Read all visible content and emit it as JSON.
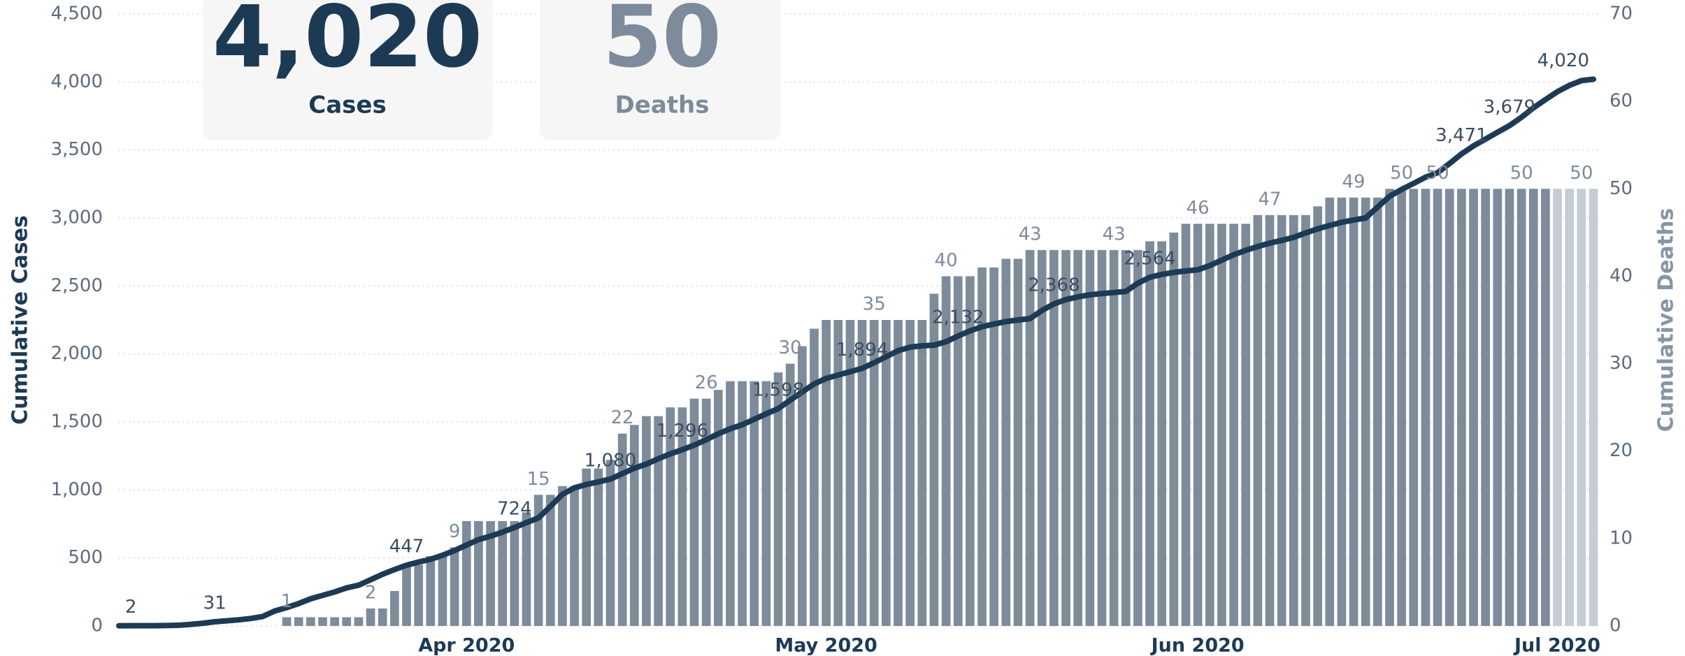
{
  "kpis": [
    {
      "value": "4,020",
      "label": "Cases"
    },
    {
      "value": "50",
      "label": "Deaths"
    }
  ],
  "chart_data": {
    "type": "bar-line",
    "categories": [
      null,
      null,
      null,
      null,
      null,
      null,
      null,
      null,
      null,
      null,
      null,
      null,
      null,
      null,
      null,
      null,
      null,
      null,
      null,
      null,
      null,
      null,
      null,
      null,
      null,
      null,
      null,
      null,
      null,
      "Apr 2020",
      null,
      null,
      null,
      null,
      null,
      null,
      null,
      null,
      null,
      null,
      null,
      null,
      null,
      null,
      null,
      null,
      null,
      null,
      null,
      null,
      null,
      null,
      null,
      null,
      null,
      null,
      null,
      null,
      null,
      "May 2020",
      null,
      null,
      null,
      null,
      null,
      null,
      null,
      null,
      null,
      null,
      null,
      null,
      null,
      null,
      null,
      null,
      null,
      null,
      null,
      null,
      null,
      null,
      null,
      null,
      null,
      null,
      null,
      null,
      null,
      null,
      "Jun 2020",
      null,
      null,
      null,
      null,
      null,
      null,
      null,
      null,
      null,
      null,
      null,
      null,
      null,
      null,
      null,
      null,
      null,
      null,
      null,
      null,
      null,
      null,
      null,
      null,
      null,
      null,
      null,
      null,
      null,
      "Jul 2020",
      null,
      null,
      null
    ],
    "series": [
      {
        "name": "Cumulative Cases",
        "kind": "line",
        "axis": "y",
        "color": "#1d3a55",
        "values": [
          1,
          2,
          2,
          2,
          3,
          5,
          12,
          20,
          31,
          38,
          45,
          55,
          70,
          110,
          135,
          165,
          200,
          225,
          250,
          280,
          300,
          340,
          380,
          415,
          447,
          470,
          490,
          520,
          555,
          595,
          635,
          660,
          690,
          724,
          760,
          794,
          880,
          968,
          1016,
          1040,
          1060,
          1080,
          1120,
          1160,
          1190,
          1230,
          1265,
          1296,
          1330,
          1370,
          1413,
          1450,
          1480,
          1520,
          1560,
          1598,
          1660,
          1720,
          1780,
          1820,
          1845,
          1870,
          1894,
          1935,
          1980,
          2024,
          2050,
          2060,
          2065,
          2090,
          2132,
          2170,
          2200,
          2220,
          2238,
          2250,
          2260,
          2320,
          2368,
          2400,
          2420,
          2435,
          2444,
          2452,
          2460,
          2520,
          2564,
          2585,
          2600,
          2610,
          2619,
          2650,
          2690,
          2730,
          2762,
          2790,
          2815,
          2835,
          2857,
          2890,
          2920,
          2945,
          2968,
          2985,
          3000,
          3080,
          3159,
          3210,
          3254,
          3300,
          3333,
          3400,
          3471,
          3530,
          3580,
          3630,
          3679,
          3740,
          3810,
          3870,
          3929,
          3975,
          4010,
          4020
        ],
        "value_labels": [
          null,
          "2",
          null,
          null,
          null,
          null,
          null,
          null,
          "31",
          null,
          null,
          null,
          null,
          null,
          null,
          null,
          null,
          null,
          null,
          null,
          null,
          null,
          null,
          null,
          "447",
          null,
          null,
          null,
          null,
          null,
          null,
          null,
          null,
          "724",
          null,
          null,
          null,
          null,
          null,
          null,
          null,
          "1,080",
          null,
          null,
          null,
          null,
          null,
          "1,296",
          null,
          null,
          null,
          null,
          null,
          null,
          null,
          "1,598",
          null,
          null,
          null,
          null,
          null,
          null,
          "1,894",
          null,
          null,
          null,
          null,
          null,
          null,
          null,
          "2,132",
          null,
          null,
          null,
          null,
          null,
          null,
          null,
          "2,368",
          null,
          null,
          null,
          null,
          null,
          null,
          null,
          "2,564",
          null,
          null,
          null,
          null,
          null,
          null,
          null,
          null,
          null,
          null,
          null,
          null,
          null,
          null,
          null,
          null,
          null,
          null,
          null,
          null,
          null,
          null,
          null,
          null,
          null,
          "3,471",
          null,
          null,
          null,
          "3,679",
          null,
          null,
          null,
          null,
          null,
          null,
          "4,020"
        ]
      },
      {
        "name": "Cumulative Deaths",
        "kind": "bar",
        "axis": "y2",
        "color": "#7d8b9b",
        "values": [
          0,
          0,
          0,
          0,
          0,
          0,
          0,
          0,
          0,
          0,
          0,
          0,
          0,
          0,
          1,
          1,
          1,
          1,
          1,
          1,
          1,
          2,
          2,
          4,
          7,
          7,
          8,
          8,
          9,
          12,
          12,
          12,
          12,
          12,
          13,
          15,
          15,
          16,
          16,
          18,
          18,
          19,
          22,
          23,
          24,
          24,
          25,
          25,
          26,
          26,
          27,
          28,
          28,
          28,
          28,
          29,
          30,
          32,
          34,
          35,
          35,
          35,
          35,
          35,
          35,
          35,
          35,
          35,
          38,
          40,
          40,
          40,
          41,
          41,
          42,
          42,
          43,
          43,
          43,
          43,
          43,
          43,
          43,
          43,
          43,
          43,
          44,
          44,
          45,
          46,
          46,
          46,
          46,
          46,
          46,
          47,
          47,
          47,
          47,
          47,
          48,
          49,
          49,
          49,
          49,
          49,
          50,
          50,
          50,
          50,
          50,
          50,
          50,
          50,
          50,
          50,
          50,
          50,
          50,
          50,
          50,
          50,
          50,
          50
        ],
        "value_labels": [
          null,
          null,
          null,
          null,
          null,
          null,
          null,
          null,
          null,
          null,
          null,
          null,
          null,
          null,
          "1",
          null,
          null,
          null,
          null,
          null,
          null,
          "2",
          null,
          null,
          null,
          null,
          null,
          null,
          "9",
          null,
          null,
          null,
          null,
          null,
          null,
          "15",
          null,
          null,
          null,
          null,
          null,
          null,
          "22",
          null,
          null,
          null,
          null,
          null,
          null,
          "26",
          null,
          null,
          null,
          null,
          null,
          null,
          "30",
          null,
          null,
          null,
          null,
          null,
          null,
          "35",
          null,
          null,
          null,
          null,
          null,
          "40",
          null,
          null,
          null,
          null,
          null,
          null,
          "43",
          null,
          null,
          null,
          null,
          null,
          null,
          "43",
          null,
          null,
          null,
          null,
          null,
          null,
          "46",
          null,
          null,
          null,
          null,
          null,
          "47",
          null,
          null,
          null,
          null,
          null,
          null,
          "49",
          null,
          null,
          null,
          "50",
          null,
          null,
          "50",
          null,
          null,
          null,
          null,
          null,
          null,
          "50",
          null,
          null,
          null,
          null,
          "50",
          null
        ],
        "colors": [
          "#7d8b9b",
          "#7d8b9b",
          "#7d8b9b",
          "#7d8b9b",
          "#7d8b9b",
          "#7d8b9b",
          "#7d8b9b",
          "#7d8b9b",
          "#7d8b9b",
          "#7d8b9b",
          "#7d8b9b",
          "#7d8b9b",
          "#7d8b9b",
          "#7d8b9b",
          "#7d8b9b",
          "#7d8b9b",
          "#7d8b9b",
          "#7d8b9b",
          "#7d8b9b",
          "#7d8b9b",
          "#7d8b9b",
          "#7d8b9b",
          "#7d8b9b",
          "#7d8b9b",
          "#7d8b9b",
          "#7d8b9b",
          "#7d8b9b",
          "#7d8b9b",
          "#7d8b9b",
          "#7d8b9b",
          "#7d8b9b",
          "#7d8b9b",
          "#7d8b9b",
          "#7d8b9b",
          "#7d8b9b",
          "#7d8b9b",
          "#7d8b9b",
          "#7d8b9b",
          "#7d8b9b",
          "#7d8b9b",
          "#7d8b9b",
          "#7d8b9b",
          "#7d8b9b",
          "#7d8b9b",
          "#7d8b9b",
          "#7d8b9b",
          "#7d8b9b",
          "#7d8b9b",
          "#7d8b9b",
          "#7d8b9b",
          "#7d8b9b",
          "#7d8b9b",
          "#7d8b9b",
          "#7d8b9b",
          "#7d8b9b",
          "#7d8b9b",
          "#7d8b9b",
          "#7d8b9b",
          "#7d8b9b",
          "#7d8b9b",
          "#7d8b9b",
          "#7d8b9b",
          "#7d8b9b",
          "#7d8b9b",
          "#7d8b9b",
          "#7d8b9b",
          "#7d8b9b",
          "#7d8b9b",
          "#7d8b9b",
          "#7d8b9b",
          "#7d8b9b",
          "#7d8b9b",
          "#7d8b9b",
          "#7d8b9b",
          "#7d8b9b",
          "#7d8b9b",
          "#7d8b9b",
          "#7d8b9b",
          "#7d8b9b",
          "#7d8b9b",
          "#7d8b9b",
          "#7d8b9b",
          "#7d8b9b",
          "#7d8b9b",
          "#7d8b9b",
          "#7d8b9b",
          "#7d8b9b",
          "#7d8b9b",
          "#7d8b9b",
          "#7d8b9b",
          "#7d8b9b",
          "#7d8b9b",
          "#7d8b9b",
          "#7d8b9b",
          "#7d8b9b",
          "#7d8b9b",
          "#7d8b9b",
          "#7d8b9b",
          "#7d8b9b",
          "#7d8b9b",
          "#7d8b9b",
          "#7d8b9b",
          "#7d8b9b",
          "#7d8b9b",
          "#7d8b9b",
          "#7d8b9b",
          "#7d8b9b",
          "#7d8b9b",
          "#7d8b9b",
          "#7d8b9b",
          "#7d8b9b",
          "#7d8b9b",
          "#7d8b9b",
          "#7d8b9b",
          "#7d8b9b",
          "#7d8b9b",
          "#7d8b9b",
          "#7d8b9b",
          "#7d8b9b",
          "#7d8b9b",
          "#c5ccd4",
          "#c5ccd4",
          "#c5ccd4",
          "#c5ccd4"
        ]
      }
    ],
    "ylim": [
      0,
      4500
    ],
    "yticks": [
      0,
      500,
      {
        "value": 1000,
        "label": "1,000"
      },
      {
        "value": 1500,
        "label": "1,500"
      },
      {
        "value": 2000,
        "label": "2,000"
      },
      {
        "value": 2500,
        "label": "2,500"
      },
      {
        "value": 3000,
        "label": "3,000"
      },
      {
        "value": 3500,
        "label": "3,500"
      },
      {
        "value": 4000,
        "label": "4,000"
      },
      {
        "value": 4500,
        "label": "4,500"
      }
    ],
    "y2lim": [
      0,
      70
    ],
    "y2ticks": [
      0,
      10,
      20,
      30,
      40,
      50,
      60,
      70
    ],
    "grid": true
  }
}
